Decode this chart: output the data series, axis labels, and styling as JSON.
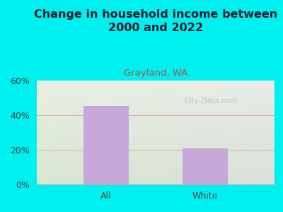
{
  "title": "Change in household income between\n2000 and 2022",
  "subtitle": "Grayland, WA",
  "categories": [
    "All",
    "White"
  ],
  "values": [
    45.5,
    21.0
  ],
  "bar_color": "#c8a8d8",
  "title_fontsize": 11.5,
  "subtitle_fontsize": 9.5,
  "subtitle_color": "#b05050",
  "tick_label_fontsize": 9,
  "ylim": [
    0,
    60
  ],
  "yticks": [
    0,
    20,
    40,
    60
  ],
  "ytick_labels": [
    "0%",
    "20%",
    "40%",
    "60%"
  ],
  "bg_outer_color": "#00f0f0",
  "bg_plot_color_topleft": "#e8f0e0",
  "bg_plot_color_topright": "#e8eae8",
  "bg_plot_color_bottomleft": "#d8e8d0",
  "bg_plot_color_bottomright": "#dcdedd",
  "watermark_text": "City-Data.com",
  "watermark_color": "#b8bec8",
  "grid_color": "#d8b0b0",
  "title_color": "#1a1a2e"
}
